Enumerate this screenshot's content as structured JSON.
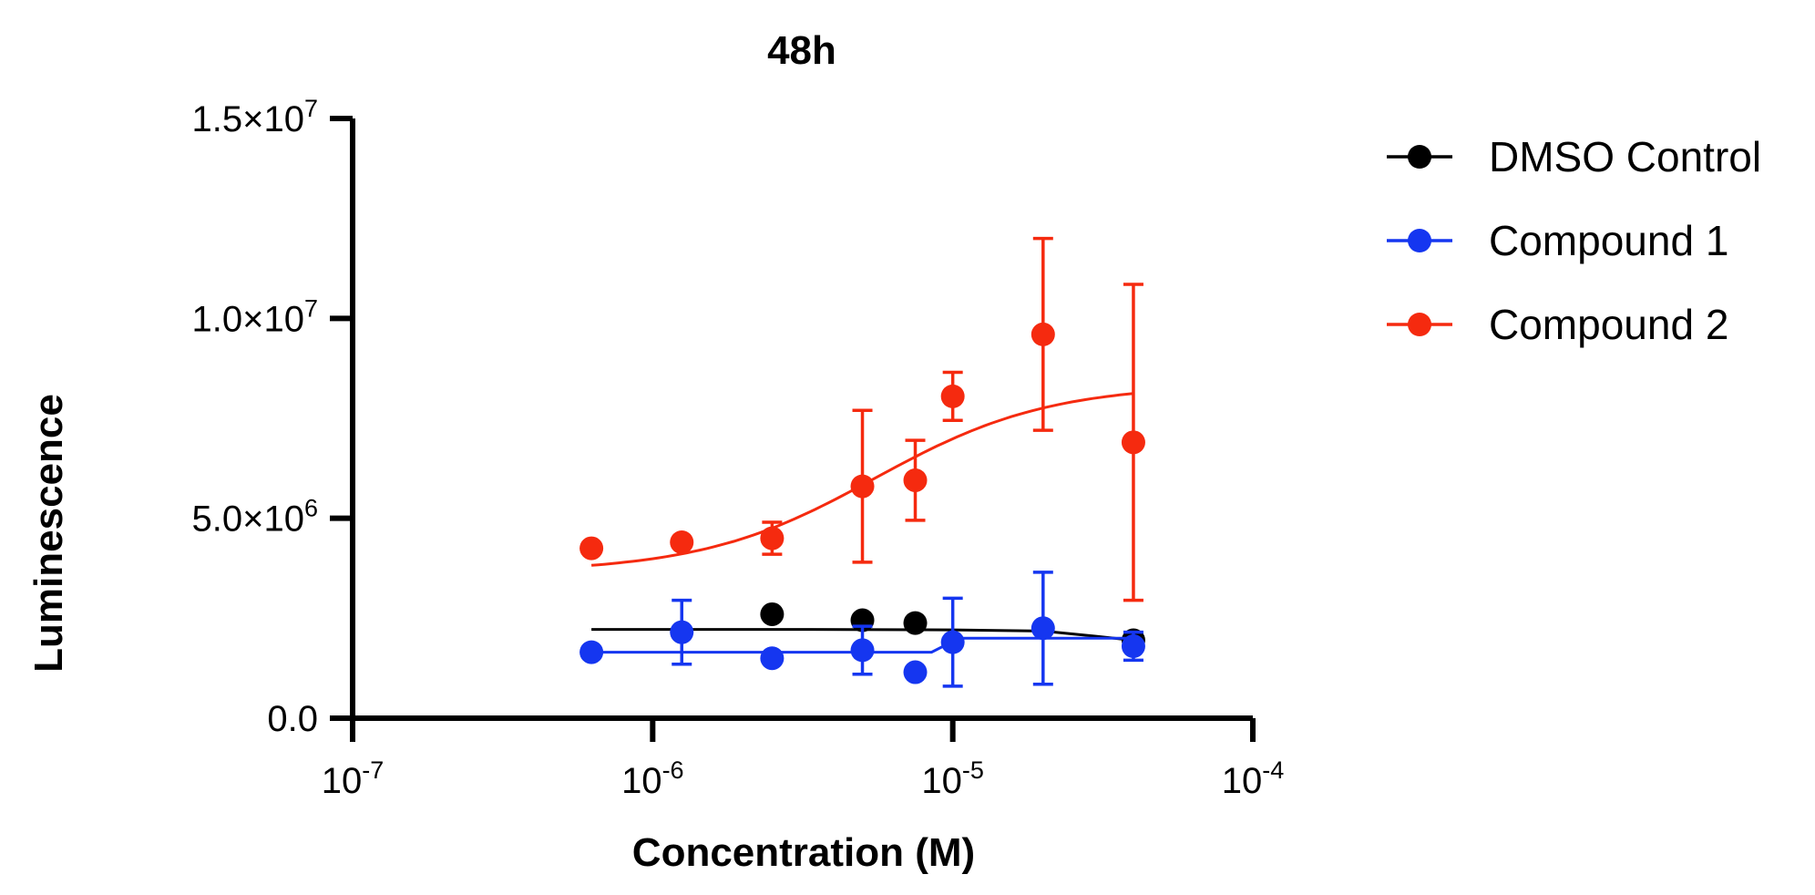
{
  "chart_data": {
    "type": "scatter",
    "title": "48h",
    "xlabel": "Concentration (M)",
    "ylabel": "Luminescence",
    "x_scale": "log",
    "xlim": [
      1e-07,
      0.0001
    ],
    "ylim": [
      0,
      15000000
    ],
    "x_ticks": [
      {
        "value": 1e-07,
        "base": "10",
        "exp": "-7"
      },
      {
        "value": 1e-06,
        "base": "10",
        "exp": "-6"
      },
      {
        "value": 1e-05,
        "base": "10",
        "exp": "-5"
      },
      {
        "value": 0.0001,
        "base": "10",
        "exp": "-4"
      }
    ],
    "y_ticks": [
      {
        "value": 0,
        "base": "0.0",
        "exp": ""
      },
      {
        "value": 5000000,
        "base": "5.0×10",
        "exp": "6"
      },
      {
        "value": 10000000,
        "base": "1.0×10",
        "exp": "7"
      },
      {
        "value": 15000000,
        "base": "1.5×10",
        "exp": "7"
      }
    ],
    "grid": false,
    "legend_position": "right",
    "series": [
      {
        "name": "DMSO Control",
        "color": "#000000",
        "points": [
          {
            "x": 2.5e-06,
            "y": 2600000
          },
          {
            "x": 5e-06,
            "y": 2450000
          },
          {
            "x": 7.5e-06,
            "y": 2380000
          },
          {
            "x": 4e-05,
            "y": 1950000
          }
        ],
        "fit": [
          {
            "x": 6.25e-07,
            "y": 2220000
          },
          {
            "x": 1e-06,
            "y": 2220000
          },
          {
            "x": 3e-06,
            "y": 2220000
          },
          {
            "x": 1e-05,
            "y": 2210000
          },
          {
            "x": 2e-05,
            "y": 2180000
          },
          {
            "x": 3e-05,
            "y": 2050000
          },
          {
            "x": 4e-05,
            "y": 1950000
          }
        ]
      },
      {
        "name": "Compound 1",
        "color": "#1536f0",
        "points": [
          {
            "x": 6.25e-07,
            "y": 1650000
          },
          {
            "x": 1.25e-06,
            "y": 2150000,
            "err": 800000
          },
          {
            "x": 2.5e-06,
            "y": 1500000
          },
          {
            "x": 5e-06,
            "y": 1700000,
            "err": 600000
          },
          {
            "x": 7.5e-06,
            "y": 1150000
          },
          {
            "x": 1e-05,
            "y": 1900000,
            "err": 1100000
          },
          {
            "x": 2e-05,
            "y": 2250000,
            "err": 1400000
          },
          {
            "x": 4e-05,
            "y": 1800000,
            "err": 350000
          }
        ],
        "fit": [
          {
            "x": 6.25e-07,
            "y": 1650000
          },
          {
            "x": 8.5e-06,
            "y": 1650000
          },
          {
            "x": 1.05e-05,
            "y": 2000000
          },
          {
            "x": 4e-05,
            "y": 2000000
          }
        ]
      },
      {
        "name": "Compound 2",
        "color": "#f52a0f",
        "points": [
          {
            "x": 6.25e-07,
            "y": 4250000
          },
          {
            "x": 1.25e-06,
            "y": 4400000
          },
          {
            "x": 2.5e-06,
            "y": 4500000,
            "err": 400000
          },
          {
            "x": 5e-06,
            "y": 5800000,
            "err": 1900000
          },
          {
            "x": 7.5e-06,
            "y": 5950000,
            "err": 1000000
          },
          {
            "x": 1e-05,
            "y": 8050000,
            "err": 600000
          },
          {
            "x": 2e-05,
            "y": 9600000,
            "err": 2400000
          },
          {
            "x": 4e-05,
            "y": 6900000,
            "err": 3950000
          }
        ],
        "fit_model": {
          "bottom": 3650000,
          "top": 8350000,
          "ec50": 5.5e-06,
          "hill": 1.5
        }
      }
    ]
  }
}
